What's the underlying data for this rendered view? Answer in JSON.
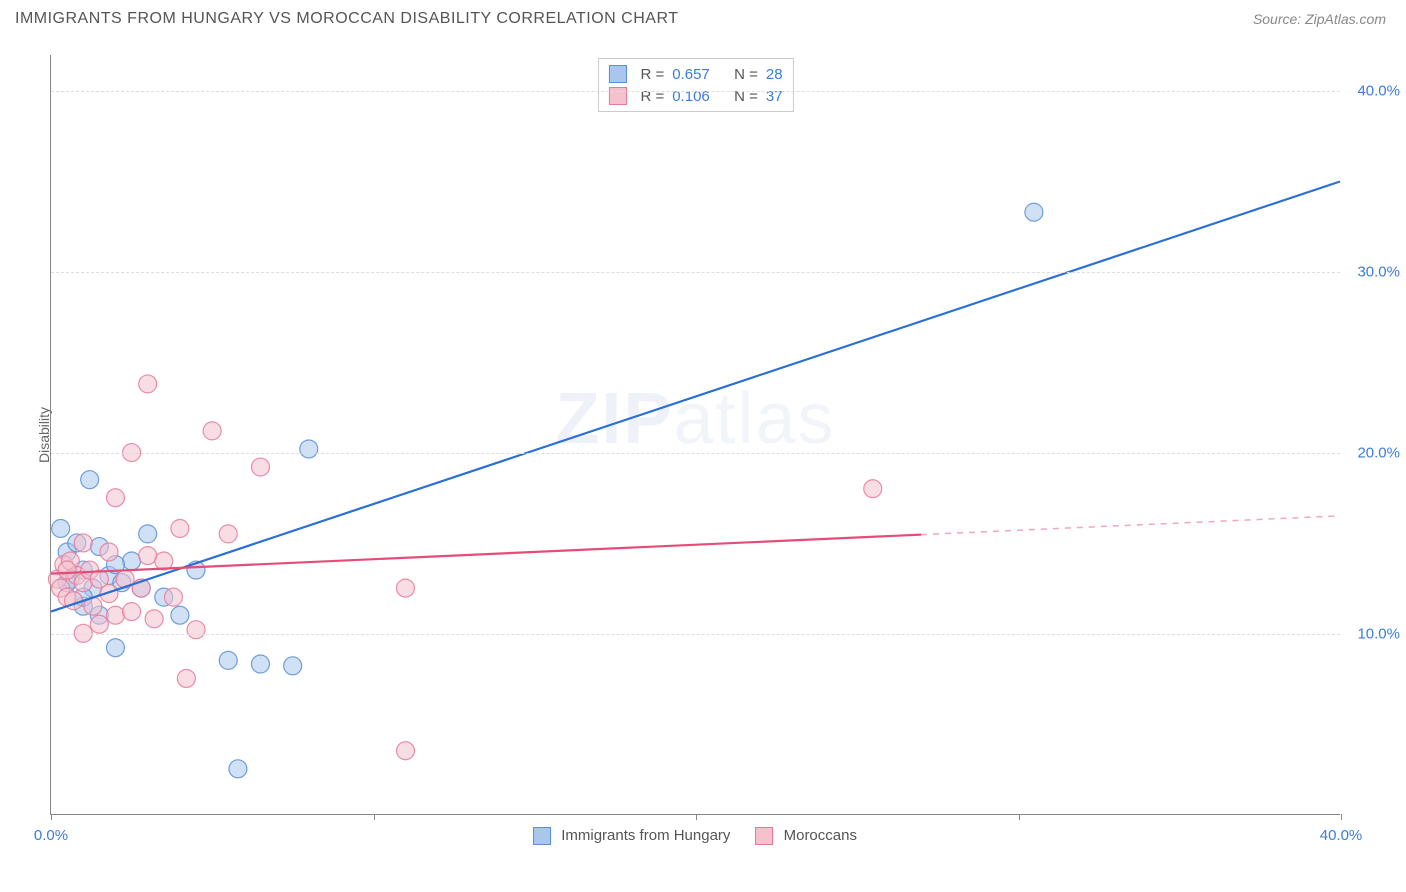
{
  "header": {
    "title": "IMMIGRANTS FROM HUNGARY VS MOROCCAN DISABILITY CORRELATION CHART",
    "source_label": "Source: ",
    "source_value": "ZipAtlas.com"
  },
  "chart": {
    "type": "scatter",
    "y_axis_label": "Disability",
    "x_axis_label": "",
    "xlim": [
      0,
      40
    ],
    "ylim": [
      0,
      42
    ],
    "x_ticks": [
      0,
      10,
      20,
      30,
      40
    ],
    "x_tick_labels": [
      "0.0%",
      "",
      "",
      "",
      "40.0%"
    ],
    "y_ticks": [
      10,
      20,
      30,
      40
    ],
    "y_tick_labels": [
      "10.0%",
      "20.0%",
      "30.0%",
      "40.0%"
    ],
    "grid_color": "#dddddd",
    "axis_color": "#888888",
    "tick_label_color": "#3b7dd8",
    "background_color": "#ffffff",
    "marker_radius": 9,
    "marker_opacity": 0.55,
    "marker_stroke_opacity": 0.85,
    "line_width": 2.2,
    "watermark_text_main": "ZIP",
    "watermark_text_sub": "atlas",
    "series": [
      {
        "name": "Immigrants from Hungary",
        "color_fill": "#a9c7ec",
        "color_stroke": "#5a8fd6",
        "line_color": "#2a6fd6",
        "r_value": "0.657",
        "n_value": "28",
        "regression": {
          "x1": 0,
          "y1": 11.2,
          "x2": 40,
          "y2": 35.0,
          "dashed_from_x": null
        },
        "points": [
          {
            "x": 0.3,
            "y": 15.8
          },
          {
            "x": 0.5,
            "y": 14.5
          },
          {
            "x": 0.6,
            "y": 13.0
          },
          {
            "x": 0.8,
            "y": 15.0
          },
          {
            "x": 1.0,
            "y": 13.5
          },
          {
            "x": 1.0,
            "y": 11.5
          },
          {
            "x": 1.2,
            "y": 18.5
          },
          {
            "x": 1.3,
            "y": 12.5
          },
          {
            "x": 1.5,
            "y": 14.8
          },
          {
            "x": 1.5,
            "y": 11.0
          },
          {
            "x": 1.8,
            "y": 13.2
          },
          {
            "x": 2.0,
            "y": 9.2
          },
          {
            "x": 2.2,
            "y": 12.8
          },
          {
            "x": 2.5,
            "y": 14.0
          },
          {
            "x": 2.8,
            "y": 12.5
          },
          {
            "x": 3.0,
            "y": 15.5
          },
          {
            "x": 3.5,
            "y": 12.0
          },
          {
            "x": 4.0,
            "y": 11.0
          },
          {
            "x": 4.5,
            "y": 13.5
          },
          {
            "x": 5.5,
            "y": 8.5
          },
          {
            "x": 5.8,
            "y": 2.5
          },
          {
            "x": 6.5,
            "y": 8.3
          },
          {
            "x": 7.5,
            "y": 8.2
          },
          {
            "x": 8.0,
            "y": 20.2
          },
          {
            "x": 30.5,
            "y": 33.3
          },
          {
            "x": 1.0,
            "y": 12.0
          },
          {
            "x": 0.5,
            "y": 12.8
          },
          {
            "x": 2.0,
            "y": 13.8
          }
        ]
      },
      {
        "name": "Moroccans",
        "color_fill": "#f4c1cd",
        "color_stroke": "#e67a9a",
        "line_color": "#e54d78",
        "r_value": "0.106",
        "n_value": "37",
        "regression": {
          "x1": 0,
          "y1": 13.3,
          "x2": 40,
          "y2": 16.5,
          "dashed_from_x": 27
        },
        "points": [
          {
            "x": 0.2,
            "y": 13.0
          },
          {
            "x": 0.3,
            "y": 12.5
          },
          {
            "x": 0.4,
            "y": 13.8
          },
          {
            "x": 0.5,
            "y": 12.0
          },
          {
            "x": 0.6,
            "y": 14.0
          },
          {
            "x": 0.7,
            "y": 11.8
          },
          {
            "x": 0.8,
            "y": 13.2
          },
          {
            "x": 1.0,
            "y": 12.8
          },
          {
            "x": 1.0,
            "y": 10.0
          },
          {
            "x": 1.2,
            "y": 13.5
          },
          {
            "x": 1.3,
            "y": 11.5
          },
          {
            "x": 1.5,
            "y": 13.0
          },
          {
            "x": 1.5,
            "y": 10.5
          },
          {
            "x": 1.8,
            "y": 12.2
          },
          {
            "x": 1.8,
            "y": 14.5
          },
          {
            "x": 2.0,
            "y": 11.0
          },
          {
            "x": 2.0,
            "y": 17.5
          },
          {
            "x": 2.3,
            "y": 13.0
          },
          {
            "x": 2.5,
            "y": 11.2
          },
          {
            "x": 2.5,
            "y": 20.0
          },
          {
            "x": 2.8,
            "y": 12.5
          },
          {
            "x": 3.0,
            "y": 23.8
          },
          {
            "x": 3.0,
            "y": 14.3
          },
          {
            "x": 3.2,
            "y": 10.8
          },
          {
            "x": 3.5,
            "y": 14.0
          },
          {
            "x": 3.8,
            "y": 12.0
          },
          {
            "x": 4.0,
            "y": 15.8
          },
          {
            "x": 4.2,
            "y": 7.5
          },
          {
            "x": 4.5,
            "y": 10.2
          },
          {
            "x": 5.0,
            "y": 21.2
          },
          {
            "x": 5.5,
            "y": 15.5
          },
          {
            "x": 6.5,
            "y": 19.2
          },
          {
            "x": 11.0,
            "y": 12.5
          },
          {
            "x": 11.0,
            "y": 3.5
          },
          {
            "x": 25.5,
            "y": 18.0
          },
          {
            "x": 1.0,
            "y": 15.0
          },
          {
            "x": 0.5,
            "y": 13.5
          }
        ]
      }
    ],
    "bottom_legend": [
      {
        "swatch_fill": "#a9c7ec",
        "swatch_stroke": "#5a8fd6",
        "label": "Immigrants from Hungary"
      },
      {
        "swatch_fill": "#f4c1cd",
        "swatch_stroke": "#e67a9a",
        "label": "Moroccans"
      }
    ],
    "top_legend_labels": {
      "R": "R =",
      "N": "N ="
    }
  }
}
